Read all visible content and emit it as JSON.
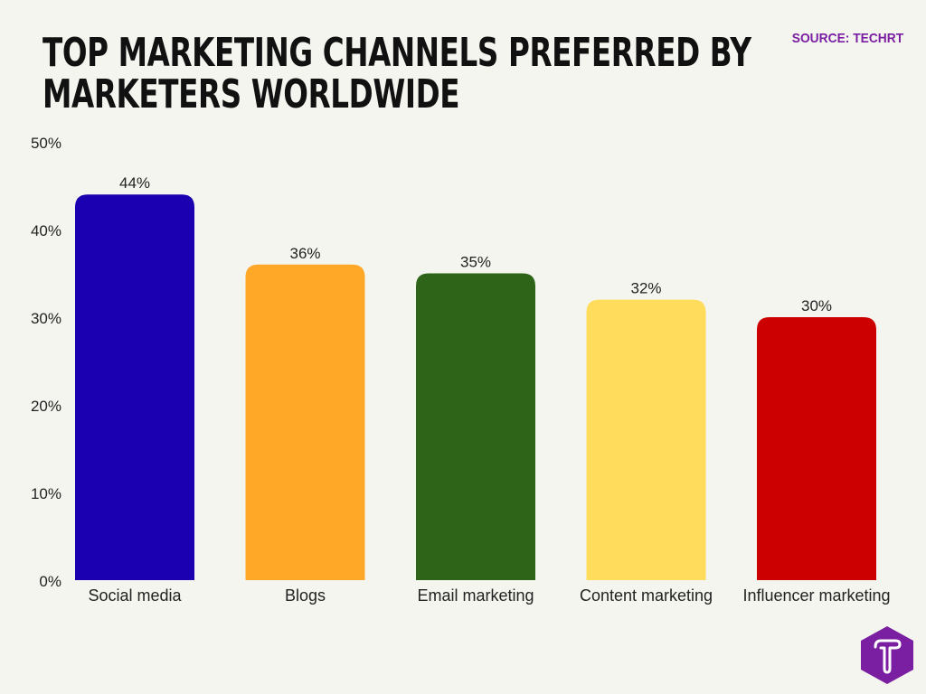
{
  "title_lines": [
    "TOP MARKETING CHANNELS PREFERRED BY",
    "MARKETERS WORLDWIDE"
  ],
  "source": "SOURCE: TECHRT",
  "logo": {
    "letter": "T",
    "color": "#7b1fa2"
  },
  "chart_data": {
    "type": "bar",
    "title": "TOP MARKETING CHANNELS PREFERRED BY MARKETERS WORLDWIDE",
    "categories": [
      "Social media",
      "Blogs",
      "Email marketing",
      "Content marketing",
      "Influencer marketing"
    ],
    "values": [
      44,
      36,
      35,
      32,
      30
    ],
    "data_labels": [
      "44%",
      "36%",
      "35%",
      "32%",
      "30%"
    ],
    "colors": [
      "#1a00b0",
      "#ffa726",
      "#2e6418",
      "#ffdc5c",
      "#cc0000"
    ],
    "yticks": [
      "0%",
      "10%",
      "20%",
      "30%",
      "40%",
      "50%"
    ],
    "ylim": [
      0,
      50
    ],
    "grid": false,
    "legend": "none"
  }
}
